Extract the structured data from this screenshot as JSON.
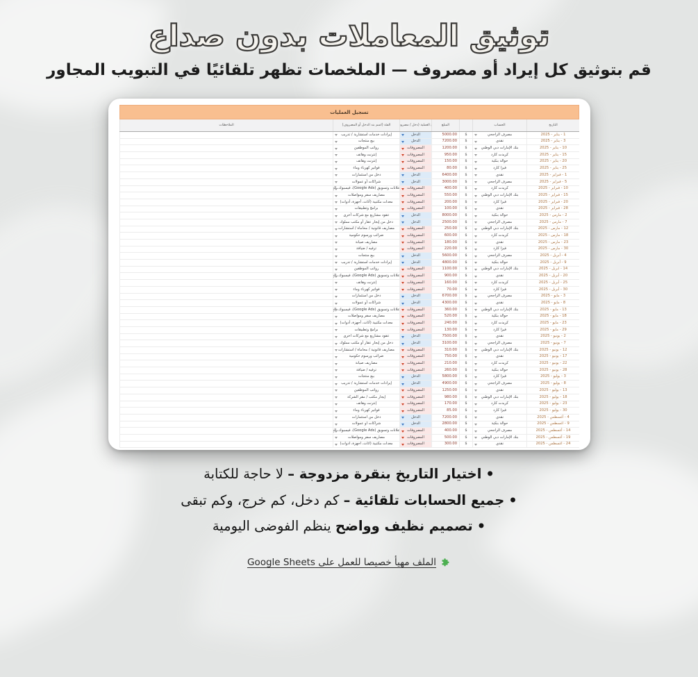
{
  "hero": {
    "title": "توثيق المعاملات بدون صداع",
    "subtitle": "قم بتوثيق كل إيراد أو مصروف — الملخصات تظهر تلقائيًا في التبويب المجاور"
  },
  "bullet_mark": "•",
  "bullets": [
    {
      "bold": "اختيار التاريخ بنقرة مزدوجة –",
      "rest": " لا حاجة للكتابة"
    },
    {
      "bold": "جميع الحسابات تلقائية –",
      "rest": " كم دخل، كم خرج، وكم تبقى"
    },
    {
      "bold": "تصميم نظيف وواضح",
      "rest": " ينظم الفوضى اليومية"
    }
  ],
  "footer": {
    "text": "الملف مهيأ خصيصا للعمل على Google Sheets",
    "icon": "puzzle-icon"
  },
  "colors": {
    "banner_bg": "#f9bf90",
    "income_bg": "#ddebf8",
    "expense_bg": "#fbe7e6",
    "income_accent": "#3d78c2",
    "expense_accent": "#cc4125",
    "date_text": "#a9703d",
    "amount_text": "#8f3a2c"
  },
  "sheet": {
    "banner": "تسجيل العمليات",
    "currency": "$",
    "type_income": "الدخل",
    "type_expense": "المصروفات",
    "columns": {
      "date": "التاريخ",
      "account": "الحساب",
      "amount": "المبلغ",
      "type": "نوع العملية (دخل / مصروف)",
      "category": "الفئة (اسم بند الدخل أو المصروف)",
      "notes": "الملاحظات"
    },
    "rows": [
      {
        "date": "1 - يناير - 2025",
        "account": "مصرف الراجحي",
        "amount": "5000.00",
        "type": "income",
        "category": "إيرادات خدمات استشارية / تدريب"
      },
      {
        "date": "3 - يناير - 2025",
        "account": "نقدي",
        "amount": "7200.00",
        "type": "income",
        "category": "بيع منتجات"
      },
      {
        "date": "10 - يناير - 2025",
        "account": "بنك الإمارات دبي الوطني",
        "amount": "1200.00",
        "type": "expense",
        "category": "رواتب الموظفين"
      },
      {
        "date": "15 - يناير - 2025",
        "account": "كريدت كارد",
        "amount": "950.00",
        "type": "expense",
        "category": "إنترنت وهاتف"
      },
      {
        "date": "20 - يناير - 2025",
        "account": "حوالة بنكية",
        "amount": "150.00",
        "type": "expense",
        "category": "إنترنت وهاتف"
      },
      {
        "date": "25 - يناير - 2025",
        "account": "فيزا كارد",
        "amount": "80.00",
        "type": "expense",
        "category": "فواتير كهرباء وماء"
      },
      {
        "date": "1 - فبراير - 2025",
        "account": "نقدي",
        "amount": "6400.00",
        "type": "income",
        "category": "دخل من استثمارات"
      },
      {
        "date": "5 - فبراير - 2025",
        "account": "مصرف الراجحي",
        "amount": "3000.00",
        "type": "income",
        "category": "شراكات أو عمولات"
      },
      {
        "date": "10 - فبراير - 2025",
        "account": "كريدت كارد",
        "amount": "400.00",
        "type": "expense",
        "category": "اعلانات وتسويق (Google Ads)، فيسبوك، إلخ"
      },
      {
        "date": "15 - فبراير - 2025",
        "account": "بنك الإمارات دبي الوطني",
        "amount": "550.00",
        "type": "expense",
        "category": "مصاريف سفر ومواصلات"
      },
      {
        "date": "20 - فبراير - 2025",
        "account": "فيزا كارد",
        "amount": "200.00",
        "type": "expense",
        "category": "معدات مكتبية (أثاث، أجهزة، أدوات)"
      },
      {
        "date": "28 - فبراير - 2025",
        "account": "نقدي",
        "amount": "100.00",
        "type": "expense",
        "category": "برامج وتطبيقات"
      },
      {
        "date": "2 - مارس - 2025",
        "account": "حوالة بنكية",
        "amount": "8000.00",
        "type": "income",
        "category": "عقود مشاريع مع شركات أخرى"
      },
      {
        "date": "7 - مارس - 2025",
        "account": "مصرف الراجحي",
        "amount": "2500.00",
        "type": "income",
        "category": "دخل من إيجار عقار أو مكتب مملوك"
      },
      {
        "date": "12 - مارس - 2025",
        "account": "بنك الإمارات دبي الوطني",
        "amount": "250.00",
        "type": "expense",
        "category": "مصاريف قانونية / محاماة / استشارات"
      },
      {
        "date": "18 - مارس - 2025",
        "account": "كريدت كارد",
        "amount": "600.00",
        "type": "expense",
        "category": "ضرائب ورسوم حكومية"
      },
      {
        "date": "23 - مارس - 2025",
        "account": "نقدي",
        "amount": "180.00",
        "type": "expense",
        "category": "مصاريف صيانة"
      },
      {
        "date": "30 - مارس - 2025",
        "account": "فيزا كارد",
        "amount": "220.00",
        "type": "expense",
        "category": "ترفيه / ضيافة"
      },
      {
        "date": "4 - أبريل - 2025",
        "account": "مصرف الراجحي",
        "amount": "5600.00",
        "type": "income",
        "category": "بيع منتجات"
      },
      {
        "date": "9 - أبريل - 2025",
        "account": "حوالة بنكية",
        "amount": "4800.00",
        "type": "income",
        "category": "إيرادات خدمات استشارية / تدريب"
      },
      {
        "date": "14 - أبريل - 2025",
        "account": "بنك الإمارات دبي الوطني",
        "amount": "1100.00",
        "type": "expense",
        "category": "رواتب الموظفين"
      },
      {
        "date": "20 - أبريل - 2025",
        "account": "نقدي",
        "amount": "900.00",
        "type": "expense",
        "category": "اعلانات وتسويق (Google Ads)، فيسبوك، إلخ"
      },
      {
        "date": "25 - أبريل - 2025",
        "account": "كريدت كارد",
        "amount": "160.00",
        "type": "expense",
        "category": "إنترنت وهاتف"
      },
      {
        "date": "30 - أبريل - 2025",
        "account": "فيزا كارد",
        "amount": "70.00",
        "type": "expense",
        "category": "فواتير كهرباء وماء"
      },
      {
        "date": "3 - مايو - 2025",
        "account": "مصرف الراجحي",
        "amount": "6700.00",
        "type": "income",
        "category": "دخل من استثمارات"
      },
      {
        "date": "8 - مايو - 2025",
        "account": "نقدي",
        "amount": "4300.00",
        "type": "income",
        "category": "شراكات أو عمولات"
      },
      {
        "date": "13 - مايو - 2025",
        "account": "بنك الإمارات دبي الوطني",
        "amount": "360.00",
        "type": "expense",
        "category": "اعلانات وتسويق (Google Ads)، فيسبوك، إلخ"
      },
      {
        "date": "18 - مايو - 2025",
        "account": "حوالة بنكية",
        "amount": "520.00",
        "type": "expense",
        "category": "مصاريف سفر ومواصلات"
      },
      {
        "date": "23 - مايو - 2025",
        "account": "كريدت كارد",
        "amount": "240.00",
        "type": "expense",
        "category": "معدات مكتبية (أثاث، أجهزة، أدوات)"
      },
      {
        "date": "29 - مايو - 2025",
        "account": "فيزا كارد",
        "amount": "130.00",
        "type": "expense",
        "category": "برامج وتطبيقات"
      },
      {
        "date": "2 - يونيو - 2025",
        "account": "نقدي",
        "amount": "7500.00",
        "type": "income",
        "category": "عقود مشاريع مع شركات أخرى"
      },
      {
        "date": "7 - يونيو - 2025",
        "account": "مصرف الراجحي",
        "amount": "3100.00",
        "type": "income",
        "category": "دخل من إيجار عقار أو مكتب مملوك"
      },
      {
        "date": "12 - يونيو - 2025",
        "account": "بنك الإمارات دبي الوطني",
        "amount": "310.00",
        "type": "expense",
        "category": "مصاريف قانونية / محاماة / استشارات"
      },
      {
        "date": "17 - يونيو - 2025",
        "account": "نقدي",
        "amount": "750.00",
        "type": "expense",
        "category": "ضرائب ورسوم حكومية"
      },
      {
        "date": "22 - يونيو - 2025",
        "account": "كريدت كارد",
        "amount": "210.00",
        "type": "expense",
        "category": "مصاريف صيانة"
      },
      {
        "date": "28 - يونيو - 2025",
        "account": "حوالة بنكية",
        "amount": "260.00",
        "type": "expense",
        "category": "ترفيه / ضيافة"
      },
      {
        "date": "3 - يوليو - 2025",
        "account": "فيزا كارد",
        "amount": "5800.00",
        "type": "income",
        "category": "بيع منتجات"
      },
      {
        "date": "8 - يوليو - 2025",
        "account": "مصرف الراجحي",
        "amount": "4900.00",
        "type": "income",
        "category": "إيرادات خدمات استشارية / تدريب"
      },
      {
        "date": "13 - يوليو - 2025",
        "account": "نقدي",
        "amount": "1250.00",
        "type": "expense",
        "category": "رواتب الموظفين"
      },
      {
        "date": "18 - يوليو - 2025",
        "account": "بنك الإمارات دبي الوطني",
        "amount": "980.00",
        "type": "expense",
        "category": "إيجار مكتب / مقر الشركة"
      },
      {
        "date": "23 - يوليو - 2025",
        "account": "كريدت كارد",
        "amount": "170.00",
        "type": "expense",
        "category": "إنترنت وهاتف"
      },
      {
        "date": "30 - يوليو - 2025",
        "account": "فيزا كارد",
        "amount": "85.00",
        "type": "expense",
        "category": "فواتير كهرباء وماء"
      },
      {
        "date": "4 - أغسطس - 2025",
        "account": "نقدي",
        "amount": "7200.00",
        "type": "income",
        "category": "دخل من استثمارات"
      },
      {
        "date": "9 - أغسطس - 2025",
        "account": "حوالة بنكية",
        "amount": "2800.00",
        "type": "income",
        "category": "شراكات أو عمولات"
      },
      {
        "date": "14 - أغسطس - 2025",
        "account": "مصرف الراجحي",
        "amount": "400.00",
        "type": "expense",
        "category": "اعلانات وتسويق (Google Ads)، فيسبوك، إلخ"
      },
      {
        "date": "19 - أغسطس - 2025",
        "account": "بنك الإمارات دبي الوطني",
        "amount": "500.00",
        "type": "expense",
        "category": "مصاريف سفر ومواصلات"
      },
      {
        "date": "24 - أغسطس - 2025",
        "account": "نقدي",
        "amount": "300.00",
        "type": "expense",
        "category": "معدات مكتبية (أثاث، أجهزة، أدوات)"
      }
    ]
  }
}
